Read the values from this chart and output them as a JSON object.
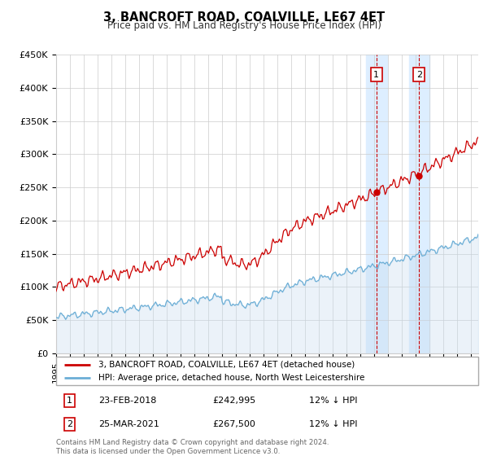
{
  "title": "3, BANCROFT ROAD, COALVILLE, LE67 4ET",
  "subtitle": "Price paid vs. HM Land Registry's House Price Index (HPI)",
  "legend_line1": "3, BANCROFT ROAD, COALVILLE, LE67 4ET (detached house)",
  "legend_line2": "HPI: Average price, detached house, North West Leicestershire",
  "annotation1_date": "23-FEB-2018",
  "annotation1_price": "£242,995",
  "annotation1_hpi": "12% ↓ HPI",
  "annotation1_label": "1",
  "annotation2_date": "25-MAR-2021",
  "annotation2_price": "£267,500",
  "annotation2_hpi": "12% ↓ HPI",
  "annotation2_label": "2",
  "footer": "Contains HM Land Registry data © Crown copyright and database right 2024.\nThis data is licensed under the Open Government Licence v3.0.",
  "sale1_year": 2018.14,
  "sale1_value": 242995,
  "sale2_year": 2021.23,
  "sale2_value": 267500,
  "hpi_color": "#6baed6",
  "hpi_fill_color": "#c6dbef",
  "price_color": "#cc0000",
  "sale_dot_color": "#cc0000",
  "vline_color": "#cc0000",
  "highlight1_color": "#ddeeff",
  "highlight2_color": "#ddeeff",
  "ylim_min": 0,
  "ylim_max": 450000
}
